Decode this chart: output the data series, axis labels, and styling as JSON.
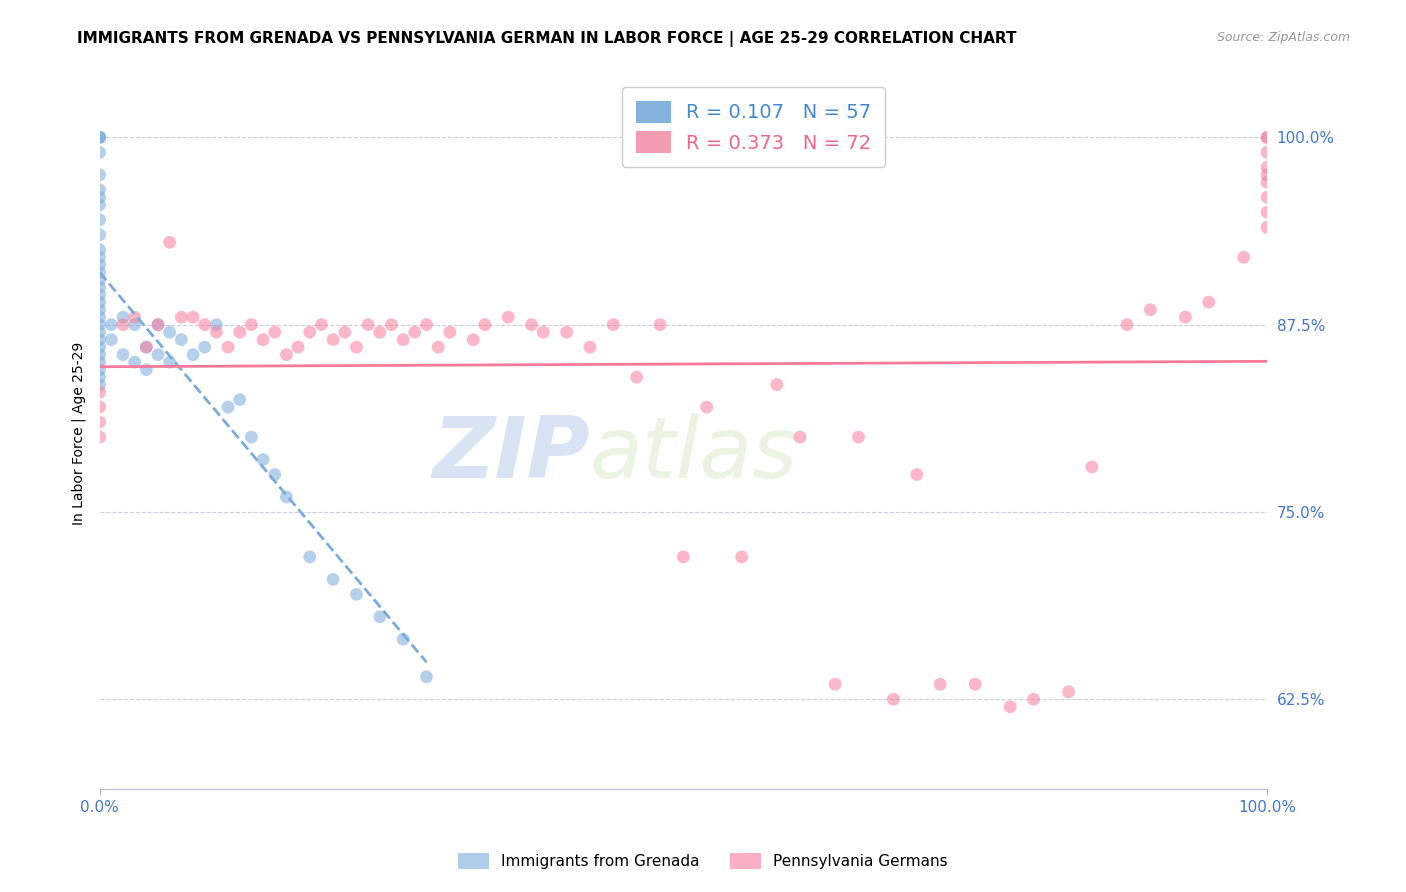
{
  "title": "IMMIGRANTS FROM GRENADA VS PENNSYLVANIA GERMAN IN LABOR FORCE | AGE 25-29 CORRELATION CHART",
  "source": "Source: ZipAtlas.com",
  "ylabel": "In Labor Force | Age 25-29",
  "y_tick_labels_right": [
    "62.5%",
    "75.0%",
    "87.5%",
    "100.0%"
  ],
  "y_tick_values_right": [
    0.625,
    0.75,
    0.875,
    1.0
  ],
  "xlim": [
    0.0,
    1.0
  ],
  "ylim": [
    0.565,
    1.04
  ],
  "legend_label_blue": "R = 0.107   N = 57",
  "legend_label_pink": "R = 0.373   N = 72",
  "watermark_zip": "ZIP",
  "watermark_atlas": "atlas",
  "blue_scatter_x": [
    0.0,
    0.0,
    0.0,
    0.0,
    0.0,
    0.0,
    0.0,
    0.0,
    0.0,
    0.0,
    0.0,
    0.0,
    0.0,
    0.0,
    0.0,
    0.0,
    0.0,
    0.0,
    0.0,
    0.0,
    0.0,
    0.0,
    0.0,
    0.0,
    0.0,
    0.0,
    0.0,
    0.0,
    0.0,
    0.01,
    0.01,
    0.02,
    0.02,
    0.03,
    0.03,
    0.04,
    0.04,
    0.05,
    0.05,
    0.06,
    0.06,
    0.07,
    0.08,
    0.09,
    0.1,
    0.11,
    0.12,
    0.13,
    0.14,
    0.15,
    0.16,
    0.18,
    0.2,
    0.22,
    0.24,
    0.26,
    0.28
  ],
  "blue_scatter_y": [
    1.0,
    1.0,
    1.0,
    0.99,
    0.975,
    0.965,
    0.96,
    0.955,
    0.945,
    0.935,
    0.925,
    0.92,
    0.915,
    0.91,
    0.905,
    0.9,
    0.895,
    0.89,
    0.885,
    0.88,
    0.875,
    0.87,
    0.865,
    0.86,
    0.855,
    0.85,
    0.845,
    0.84,
    0.835,
    0.875,
    0.865,
    0.88,
    0.855,
    0.875,
    0.85,
    0.86,
    0.845,
    0.875,
    0.855,
    0.87,
    0.85,
    0.865,
    0.855,
    0.86,
    0.875,
    0.82,
    0.825,
    0.8,
    0.785,
    0.775,
    0.76,
    0.72,
    0.705,
    0.695,
    0.68,
    0.665,
    0.64
  ],
  "pink_scatter_x": [
    0.0,
    0.0,
    0.0,
    0.0,
    0.02,
    0.03,
    0.04,
    0.05,
    0.06,
    0.07,
    0.08,
    0.09,
    0.1,
    0.11,
    0.12,
    0.13,
    0.14,
    0.15,
    0.16,
    0.17,
    0.18,
    0.19,
    0.2,
    0.21,
    0.22,
    0.23,
    0.24,
    0.25,
    0.26,
    0.27,
    0.28,
    0.29,
    0.3,
    0.32,
    0.33,
    0.35,
    0.37,
    0.38,
    0.4,
    0.42,
    0.44,
    0.46,
    0.48,
    0.5,
    0.52,
    0.55,
    0.58,
    0.6,
    0.63,
    0.65,
    0.68,
    0.7,
    0.72,
    0.75,
    0.78,
    0.8,
    0.83,
    0.85,
    0.88,
    0.9,
    0.93,
    0.95,
    0.98,
    1.0,
    1.0,
    1.0,
    1.0,
    1.0,
    1.0,
    1.0,
    1.0,
    1.0
  ],
  "pink_scatter_y": [
    0.83,
    0.82,
    0.81,
    0.8,
    0.875,
    0.88,
    0.86,
    0.875,
    0.93,
    0.88,
    0.88,
    0.875,
    0.87,
    0.86,
    0.87,
    0.875,
    0.865,
    0.87,
    0.855,
    0.86,
    0.87,
    0.875,
    0.865,
    0.87,
    0.86,
    0.875,
    0.87,
    0.875,
    0.865,
    0.87,
    0.875,
    0.86,
    0.87,
    0.865,
    0.875,
    0.88,
    0.875,
    0.87,
    0.87,
    0.86,
    0.875,
    0.84,
    0.875,
    0.72,
    0.82,
    0.72,
    0.835,
    0.8,
    0.635,
    0.8,
    0.625,
    0.775,
    0.635,
    0.635,
    0.62,
    0.625,
    0.63,
    0.78,
    0.875,
    0.885,
    0.88,
    0.89,
    0.92,
    0.94,
    0.95,
    0.96,
    0.97,
    0.975,
    0.98,
    0.99,
    1.0,
    1.0
  ],
  "blue_line_color": "#7aabdb",
  "pink_line_color": "#f87a9a",
  "blue_line_style": "--",
  "pink_line_style": "-",
  "scatter_blue_color": "#7aabdb",
  "scatter_pink_color": "#f87a9a",
  "scatter_alpha": 0.55,
  "scatter_size": 85,
  "background_color": "#ffffff",
  "grid_color": "#ccccdd",
  "title_fontsize": 11,
  "source_fontsize": 9,
  "ylabel_fontsize": 10,
  "ytick_right_color": "#4477cc",
  "xtick_bottom_color": "#4477cc",
  "legend_blue_color": "#4488cc",
  "legend_pink_color": "#ee6688"
}
